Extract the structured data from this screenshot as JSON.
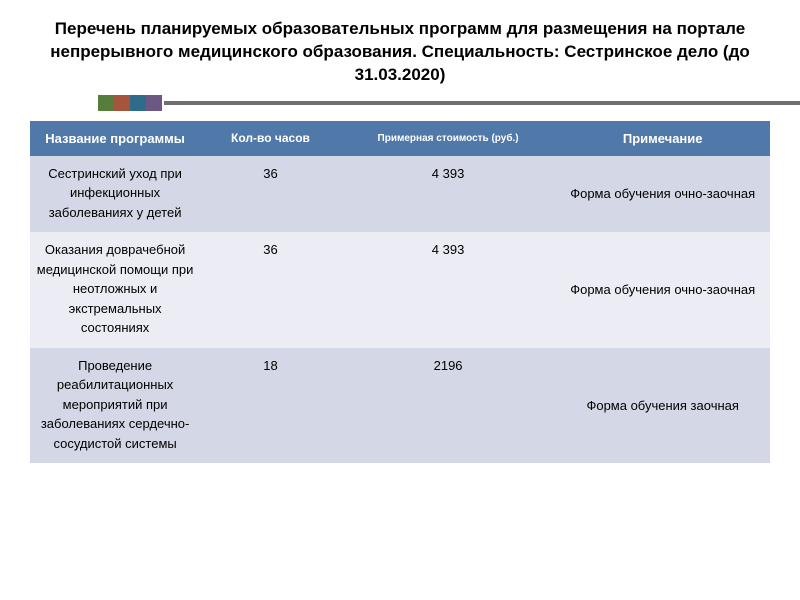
{
  "title": "Перечень планируемых образовательных программ для размещения на портале непрерывного медицинского образования.  Специальность: Сестринское дело (до 31.03.2020)",
  "divider_colors": [
    "#567d3b",
    "#a4553b",
    "#2f6c8b",
    "#6c5882"
  ],
  "table": {
    "columns": {
      "name": "Название программы",
      "hours": "Кол-во часов",
      "cost": "Примерная стоимость (руб.)",
      "note": "Примечание"
    },
    "rows": [
      {
        "name": "Сестринский уход при инфекционных заболеваниях у детей",
        "hours": "36",
        "cost": "4 393",
        "note": "Форма обучения очно-заочная"
      },
      {
        "name": "Оказания доврачебной медицинской помощи при неотложных и экстремальных состояниях",
        "hours": "36",
        "cost": "4 393",
        "note": "Форма обучения очно-заочная"
      },
      {
        "name": "Проведение реабилитационных мероприятий при заболеваниях сердечно-сосудистой системы",
        "hours": "18",
        "cost": "2196",
        "note": "Форма обучения заочная"
      }
    ]
  }
}
